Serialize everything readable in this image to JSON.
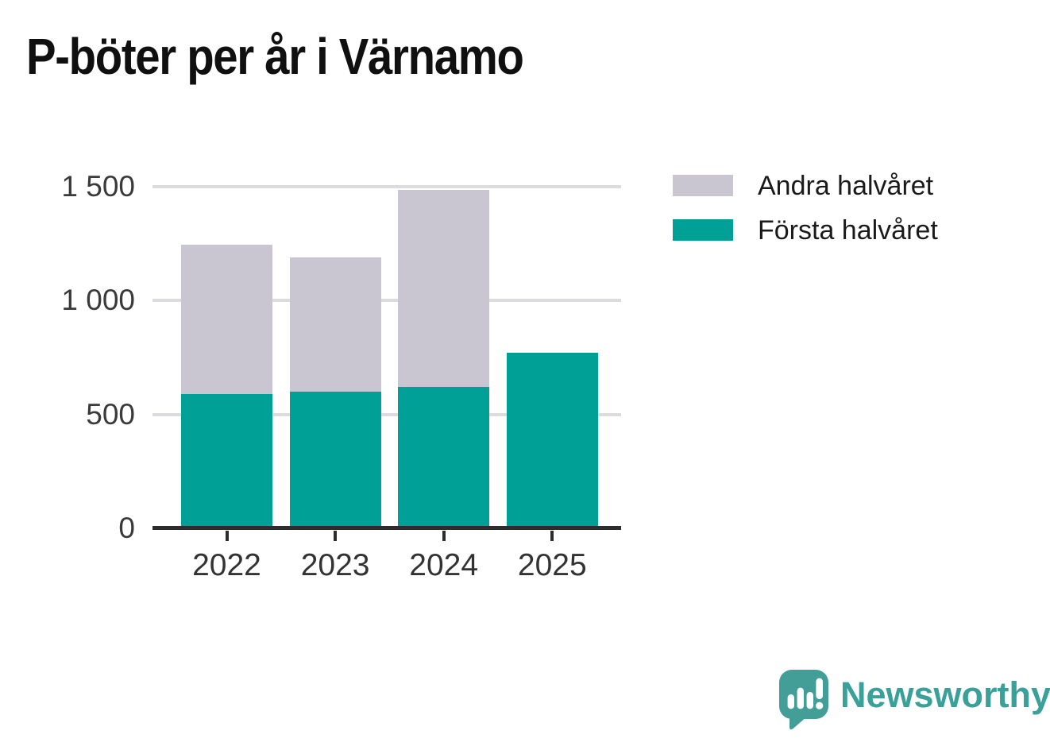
{
  "title": "P-böter per år i Värnamo",
  "chart_data": {
    "type": "bar",
    "stacked": true,
    "title": "P-böter per år i Värnamo",
    "categories": [
      "2022",
      "2023",
      "2024",
      "2025"
    ],
    "series": [
      {
        "name": "Första halvåret",
        "color": "#00a096",
        "values": [
          590,
          600,
          620,
          770
        ]
      },
      {
        "name": "Andra halvåret",
        "color": "#c9c6d1",
        "values": [
          655,
          590,
          865,
          0
        ]
      }
    ],
    "totals": [
      1245,
      1190,
      1485,
      770
    ],
    "xlabel": "",
    "ylabel": "",
    "ylim": [
      0,
      1500
    ],
    "yticks": [
      0,
      500,
      1000,
      1500
    ],
    "ytick_labels": [
      "0",
      "500",
      "1 000",
      "1 500"
    ],
    "grid": true,
    "legend_position": "right-top"
  },
  "legend": {
    "items": [
      {
        "label": "Andra halvåret",
        "color": "#c9c6d1"
      },
      {
        "label": "Första halvåret",
        "color": "#00a096"
      }
    ]
  },
  "branding": {
    "logo_text": "Newsworthy",
    "logo_color": "#3aa09a",
    "logo_icon": "speech-bubble-bar-chart-icon"
  },
  "colors": {
    "first_half": "#00a096",
    "second_half": "#c9c6d1",
    "gridline": "#dcdcde",
    "axis": "#2d2d2d",
    "tick_text": "#333333",
    "background": "#ffffff"
  }
}
